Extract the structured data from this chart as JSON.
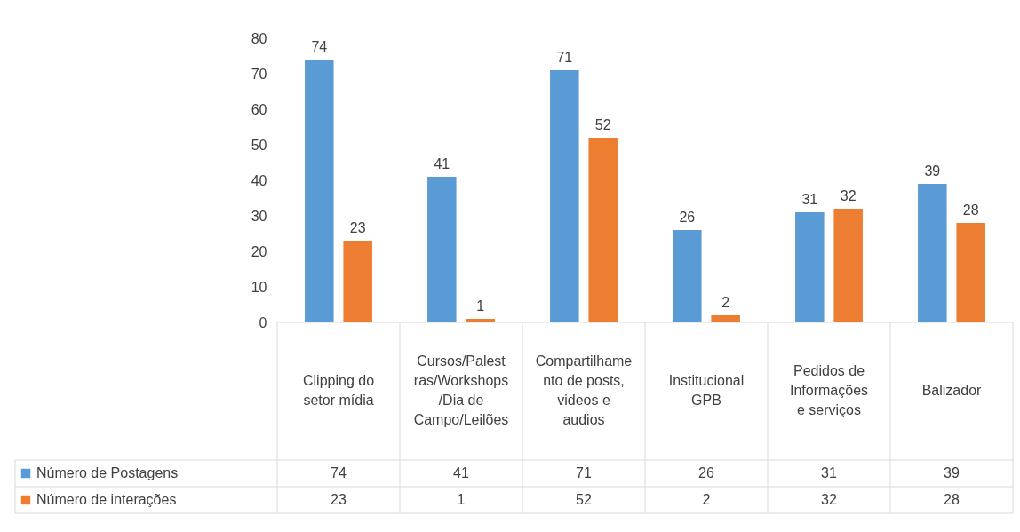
{
  "chart_data": {
    "type": "bar",
    "categories": [
      "Clipping do setor mídia",
      "Cursos/Palestras/Workshops/Dia de Campo/Leilões",
      "Compartilhamento de posts, videos e audios",
      "Institucional GPB",
      "Pedidos de Informações  e  serviços",
      "Balizador"
    ],
    "series": [
      {
        "name": "Número de Postagens",
        "color": "#5b9bd5",
        "values": [
          74,
          41,
          71,
          26,
          31,
          39
        ],
        "value_labels": [
          "74",
          "41",
          "71",
          "26",
          "31",
          "39"
        ]
      },
      {
        "name": "Número de interações",
        "color": "#ed7d31",
        "values": [
          23,
          1,
          52,
          2,
          32,
          28
        ],
        "value_labels": [
          "23",
          "1",
          "52",
          "2",
          "32",
          "28"
        ]
      }
    ],
    "ylim": [
      0,
      80
    ],
    "yticks": [
      0,
      10,
      20,
      30,
      40,
      50,
      60,
      70,
      80
    ],
    "grid": false,
    "data_labels": true,
    "legend": "bottom left"
  }
}
